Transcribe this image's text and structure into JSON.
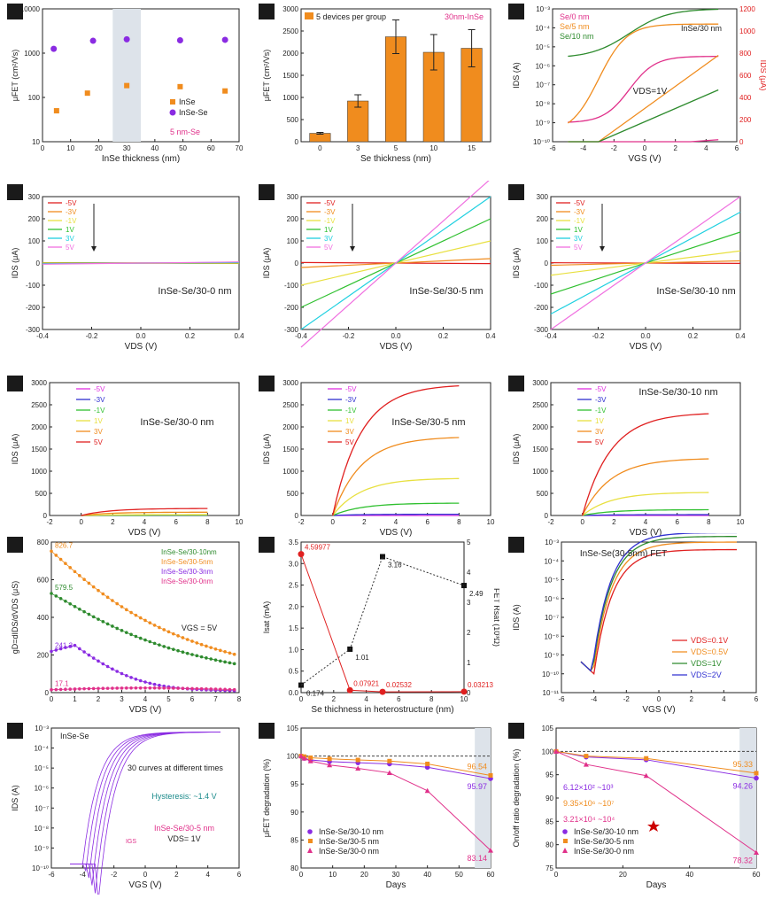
{
  "chart_data": [
    {
      "id": "a",
      "label": "a",
      "type": "scatter",
      "xlabel": "InSe thickness (nm)",
      "ylabel": "μFET (cm²/Vs)",
      "xticks": [
        "0",
        "10",
        "20",
        "30",
        "40",
        "50",
        "60",
        "70"
      ],
      "yticks": [
        "10",
        "100",
        "1000",
        "10000"
      ],
      "xlim": [
        0,
        70
      ],
      "ylim_log": [
        10,
        10000
      ],
      "note": "5 nm-Se",
      "series": [
        {
          "name": "InSe",
          "color": "#f08c1e",
          "marker": "square",
          "points": [
            [
              5,
              50
            ],
            [
              16,
              125
            ],
            [
              30,
              185
            ],
            [
              49,
              175
            ],
            [
              65,
              140
            ]
          ]
        },
        {
          "name": "InSe-Se",
          "color": "#8a2be2",
          "marker": "circle",
          "points": [
            [
              4,
              1250
            ],
            [
              18,
              1900
            ],
            [
              30,
              2050
            ],
            [
              49,
              1950
            ],
            [
              65,
              2000
            ]
          ]
        }
      ]
    },
    {
      "id": "b",
      "label": "b",
      "type": "bar",
      "xlabel": "Se thickness (nm)",
      "ylabel": "μFET (cm²/Vs)",
      "title": "30nm-InSe",
      "legend": "5 devices per group",
      "color": "#f08c1e",
      "categories": [
        "0",
        "3",
        "5",
        "10",
        "15"
      ],
      "values": [
        190,
        920,
        2370,
        2020,
        2110
      ],
      "errors": [
        20,
        140,
        380,
        400,
        420
      ],
      "ylim": [
        0,
        3000
      ],
      "yticks": [
        "0",
        "500",
        "1000",
        "1500",
        "2000",
        "2500",
        "3000"
      ]
    },
    {
      "id": "c",
      "label": "c",
      "type": "line",
      "xlabel": "VGS (V)",
      "ylabel": "IDS (A)",
      "ylabel2": "IDS (μA)",
      "xticks": [
        "-6",
        "-4",
        "-2",
        "0",
        "2",
        "4",
        "6"
      ],
      "yticks": [
        "10⁻¹⁰",
        "10⁻⁹",
        "10⁻⁸",
        "10⁻⁷",
        "10⁻⁶",
        "10⁻⁵",
        "10⁻⁴",
        "10⁻³"
      ],
      "y2ticks": [
        "0",
        "200",
        "400",
        "600",
        "800",
        "1000",
        "1200"
      ],
      "annotations": [
        "InSe/30 nm",
        "VDS=1V"
      ],
      "series": [
        {
          "name": "Se/0 nm",
          "color": "#e0308a"
        },
        {
          "name": "Se/5 nm",
          "color": "#f08c1e"
        },
        {
          "name": "Se/10 nm",
          "color": "#2e8b2e"
        }
      ]
    },
    {
      "id": "d",
      "label": "d",
      "type": "line",
      "device": "InSe-Se/30-0 nm",
      "xlabel": "VDS (V)",
      "ylabel": "IDS (μA)",
      "xticks": [
        "-0.4",
        "-0.2",
        "0.0",
        "0.2",
        "0.4"
      ],
      "yticks": [
        "-300",
        "-200",
        "-100",
        "0",
        "100",
        "200",
        "300"
      ],
      "ylim": [
        -300,
        300
      ],
      "legend": [
        "-5V",
        "-3V",
        "-1V",
        "1V",
        "3V",
        "5V"
      ],
      "colors": [
        "#e02020",
        "#f08c1e",
        "#e8e040",
        "#30c030",
        "#20d0e0",
        "#f070e0"
      ],
      "slopes": [
        -3,
        -2,
        -1,
        3,
        6,
        10
      ]
    },
    {
      "id": "e",
      "label": "e",
      "type": "line",
      "device": "InSe-Se/30-5 nm",
      "xlabel": "VDS (V)",
      "ylabel": "IDS (μA)",
      "xticks": [
        "-0.4",
        "-0.2",
        "0.0",
        "0.2",
        "0.4"
      ],
      "yticks": [
        "-300",
        "-200",
        "-100",
        "0",
        "100",
        "200",
        "300"
      ],
      "ylim": [
        -300,
        300
      ],
      "legend": [
        "-5V",
        "-3V",
        "-1V",
        "1V",
        "3V",
        "5V"
      ],
      "colors": [
        "#e02020",
        "#f08c1e",
        "#e8e040",
        "#30c030",
        "#20d0e0",
        "#f070e0"
      ],
      "slopes": [
        -5,
        40,
        200,
        400,
        600,
        760
      ]
    },
    {
      "id": "f",
      "label": "f",
      "type": "line",
      "device": "InSe-Se/30-10 nm",
      "xlabel": "VDS (V)",
      "ylabel": "IDS (μA)",
      "xticks": [
        "-0.4",
        "-0.2",
        "0.0",
        "0.2",
        "0.4"
      ],
      "yticks": [
        "-300",
        "-200",
        "-100",
        "0",
        "100",
        "200",
        "300"
      ],
      "ylim": [
        -300,
        300
      ],
      "legend": [
        "-5V",
        "-3V",
        "-1V",
        "1V",
        "3V",
        "5V"
      ],
      "colors": [
        "#e02020",
        "#f08c1e",
        "#e8e040",
        "#30c030",
        "#20d0e0",
        "#f070e0"
      ],
      "slopes": [
        -3,
        20,
        110,
        280,
        460,
        600
      ]
    },
    {
      "id": "g",
      "label": "g",
      "type": "line",
      "device": "InSe-Se/30-0 nm",
      "xlabel": "VDS (V)",
      "ylabel": "IDS (μA)",
      "xticks": [
        "-2",
        "0",
        "2",
        "4",
        "6",
        "8",
        "10"
      ],
      "yticks": [
        "0",
        "500",
        "1000",
        "1500",
        "2000",
        "2500",
        "3000"
      ],
      "ylim": [
        0,
        3200
      ],
      "legend": [
        "-5V",
        "-3V",
        "-1V",
        "1V",
        "3V",
        "5V"
      ],
      "colors": [
        "#e030e0",
        "#3030d0",
        "#30c030",
        "#e8e040",
        "#f08c1e",
        "#e02020"
      ],
      "sat": [
        0,
        0,
        5,
        20,
        80,
        170
      ]
    },
    {
      "id": "h",
      "label": "h",
      "type": "line",
      "device": "InSe-Se/30-5 nm",
      "xlabel": "VDS (V)",
      "ylabel": "IDS (μA)",
      "xticks": [
        "-2",
        "0",
        "2",
        "4",
        "6",
        "8",
        "10"
      ],
      "yticks": [
        "0",
        "500",
        "1000",
        "1500",
        "2000",
        "2500",
        "3000"
      ],
      "ylim": [
        0,
        3200
      ],
      "legend": [
        "-5V",
        "-3V",
        "-1V",
        "1V",
        "3V",
        "5V"
      ],
      "colors": [
        "#e030e0",
        "#3030d0",
        "#30c030",
        "#e8e040",
        "#f08c1e",
        "#e02020"
      ],
      "sat": [
        0,
        30,
        300,
        900,
        1900,
        3160
      ]
    },
    {
      "id": "i",
      "label": "i",
      "type": "line",
      "device": "InSe-Se/30-10 nm",
      "xlabel": "VDS (V)",
      "ylabel": "IDS (μA)",
      "xticks": [
        "-2",
        "0",
        "2",
        "4",
        "6",
        "8",
        "10"
      ],
      "yticks": [
        "0",
        "500",
        "1000",
        "1500",
        "2000",
        "2500",
        "3000"
      ],
      "ylim": [
        0,
        3200
      ],
      "legend": [
        "-5V",
        "-3V",
        "-1V",
        "1V",
        "3V",
        "5V"
      ],
      "colors": [
        "#e030e0",
        "#3030d0",
        "#30c030",
        "#e8e040",
        "#f08c1e",
        "#e02020"
      ],
      "sat": [
        0,
        20,
        140,
        560,
        1380,
        2480
      ]
    },
    {
      "id": "j",
      "label": "j",
      "type": "line",
      "xlabel": "VDS (V)",
      "ylabel": "gD=dIDS/dVDS (μS)",
      "annotation": "VGS = 5V",
      "xticks": [
        "0",
        "1",
        "2",
        "3",
        "4",
        "5",
        "6",
        "7",
        "8"
      ],
      "yticks": [
        "0",
        "200",
        "400",
        "600",
        "800"
      ],
      "ylim": [
        0,
        880
      ],
      "series": [
        {
          "name": "InSe-Se/30-10nm",
          "color": "#2e8b2e",
          "start": 579.5,
          "label": "579.5"
        },
        {
          "name": "InSe-Se/30-5nm",
          "color": "#f08c1e",
          "start": 826.7,
          "label": "826.7"
        },
        {
          "name": "InSe-Se/30-3nm",
          "color": "#8a2be2",
          "start": 241.3,
          "label": "241.3"
        },
        {
          "name": "InSe-Se/30-0nm",
          "color": "#e0308a",
          "start": 17.1,
          "label": "17.1"
        }
      ]
    },
    {
      "id": "k",
      "label": "k",
      "type": "line",
      "xlabel": "Se thichness in heterostructure  (nm)",
      "ylabel": "Isat (mA)",
      "ylabel2": "FET Rsat (10³Ω)",
      "xticks": [
        "0",
        "2",
        "4",
        "6",
        "8",
        "10"
      ],
      "yticks": [
        "0.0",
        "0.5",
        "1.0",
        "1.5",
        "2.0",
        "2.5",
        "3.0",
        "3.5"
      ],
      "y2ticks": [
        "0",
        "1",
        "2",
        "3",
        "4",
        "5"
      ],
      "isat": {
        "x": [
          0,
          3,
          5,
          10
        ],
        "y": [
          0.174,
          1.01,
          3.16,
          2.49
        ],
        "labels": [
          "0.174",
          "1.01",
          "3.16",
          "2.49"
        ]
      },
      "rsat": {
        "x": [
          0,
          3,
          5,
          10
        ],
        "y": [
          4.59977,
          0.07921,
          0.02532,
          0.03213
        ],
        "labels": [
          "4.59977",
          "0.07921",
          "0.02532",
          "0.03213"
        ]
      }
    },
    {
      "id": "l",
      "label": "l",
      "type": "line",
      "title": "InSe-Se(30-5nm)  FET",
      "xlabel": "VGS (V)",
      "ylabel": "IDS (A)",
      "xticks": [
        "-6",
        "-4",
        "-2",
        "0",
        "2",
        "4",
        "6"
      ],
      "yticks": [
        "10⁻¹¹",
        "10⁻¹⁰",
        "10⁻⁹",
        "10⁻⁸",
        "10⁻⁷",
        "10⁻⁶",
        "10⁻⁵",
        "10⁻⁴",
        "10⁻³"
      ],
      "series": [
        {
          "name": "VDS=0.1V",
          "color": "#e02020"
        },
        {
          "name": "VDS=0.5V",
          "color": "#f08c1e"
        },
        {
          "name": "VDS=1V",
          "color": "#2e8b2e"
        },
        {
          "name": "VDS=2V",
          "color": "#3030d0"
        }
      ]
    },
    {
      "id": "m",
      "label": "m",
      "type": "line",
      "xlabel": "VGS (V)",
      "ylabel": "IDS (A)",
      "xticks": [
        "-6",
        "-4",
        "-2",
        "0",
        "2",
        "4",
        "6"
      ],
      "yticks": [
        "10⁻¹⁰",
        "10⁻⁹",
        "10⁻⁸",
        "10⁻⁷",
        "10⁻⁶",
        "10⁻⁵",
        "10⁻⁴",
        "10⁻³"
      ],
      "legend": "InSe-Se",
      "notes": [
        "30 curves at different times",
        "Hysteresis: ~1.4 V",
        "InSe-Se/30-5 nm",
        "VDS= 1V",
        "IGS"
      ]
    },
    {
      "id": "n",
      "label": "n",
      "type": "line",
      "xlabel": "Days",
      "ylabel": "μFET degradation (%)",
      "xticks": [
        "0",
        "10",
        "20",
        "30",
        "40",
        "50",
        "60"
      ],
      "yticks": [
        "80",
        "85",
        "90",
        "95",
        "100",
        "105"
      ],
      "ylim": [
        80,
        105
      ],
      "series": [
        {
          "name": "InSe-Se/30-10 nm",
          "color": "#8a2be2",
          "marker": "circle",
          "x": [
            0,
            1,
            3,
            9,
            18,
            28,
            40,
            60
          ],
          "y": [
            100,
            99.6,
            99.3,
            99,
            98.8,
            98.6,
            98.0,
            95.97
          ],
          "end": "95.97"
        },
        {
          "name": "InSe-Se/30-5 nm",
          "color": "#f08c1e",
          "marker": "square",
          "x": [
            0,
            1,
            3,
            9,
            18,
            28,
            40,
            60
          ],
          "y": [
            100,
            99.9,
            99.7,
            99.5,
            99.3,
            99.1,
            98.6,
            96.54
          ],
          "end": "96.54"
        },
        {
          "name": "InSe-Se/30-0 nm",
          "color": "#e0308a",
          "marker": "triangle",
          "x": [
            0,
            1,
            3,
            9,
            18,
            28,
            40,
            60
          ],
          "y": [
            100,
            99.6,
            99.1,
            98.4,
            97.8,
            97.0,
            93.8,
            83.14
          ],
          "end": "83.14"
        }
      ]
    },
    {
      "id": "o",
      "label": "o",
      "type": "line",
      "xlabel": "Days",
      "ylabel": "On/off ratio degradation (%)",
      "xticks": [
        "0",
        "20",
        "40",
        "60"
      ],
      "yticks": [
        "75",
        "80",
        "85",
        "90",
        "95",
        "100",
        "105"
      ],
      "ylim": [
        75,
        105
      ],
      "notes": [
        {
          "text": "6.12×10² ~10³",
          "color": "#8a2be2"
        },
        {
          "text": "9.35×10⁶ ~10⁷",
          "color": "#f08c1e"
        },
        {
          "text": "3.21×10⁴ ~10⁴",
          "color": "#e0308a"
        }
      ],
      "series": [
        {
          "name": "InSe-Se/30-10 nm",
          "color": "#8a2be2",
          "marker": "circle",
          "x": [
            0,
            9,
            27,
            60
          ],
          "y": [
            100,
            98.8,
            98.2,
            94.26
          ],
          "end": "94.26"
        },
        {
          "name": "InSe-Se/30-5 nm",
          "color": "#f08c1e",
          "marker": "square",
          "x": [
            0,
            9,
            27,
            60
          ],
          "y": [
            100,
            99.0,
            98.5,
            95.33
          ],
          "end": "95.33"
        },
        {
          "name": "InSe-Se/30-0 nm",
          "color": "#e0308a",
          "marker": "triangle",
          "x": [
            0,
            9,
            27,
            60
          ],
          "y": [
            100,
            97.2,
            94.8,
            78.32
          ],
          "end": "78.32"
        }
      ]
    }
  ]
}
